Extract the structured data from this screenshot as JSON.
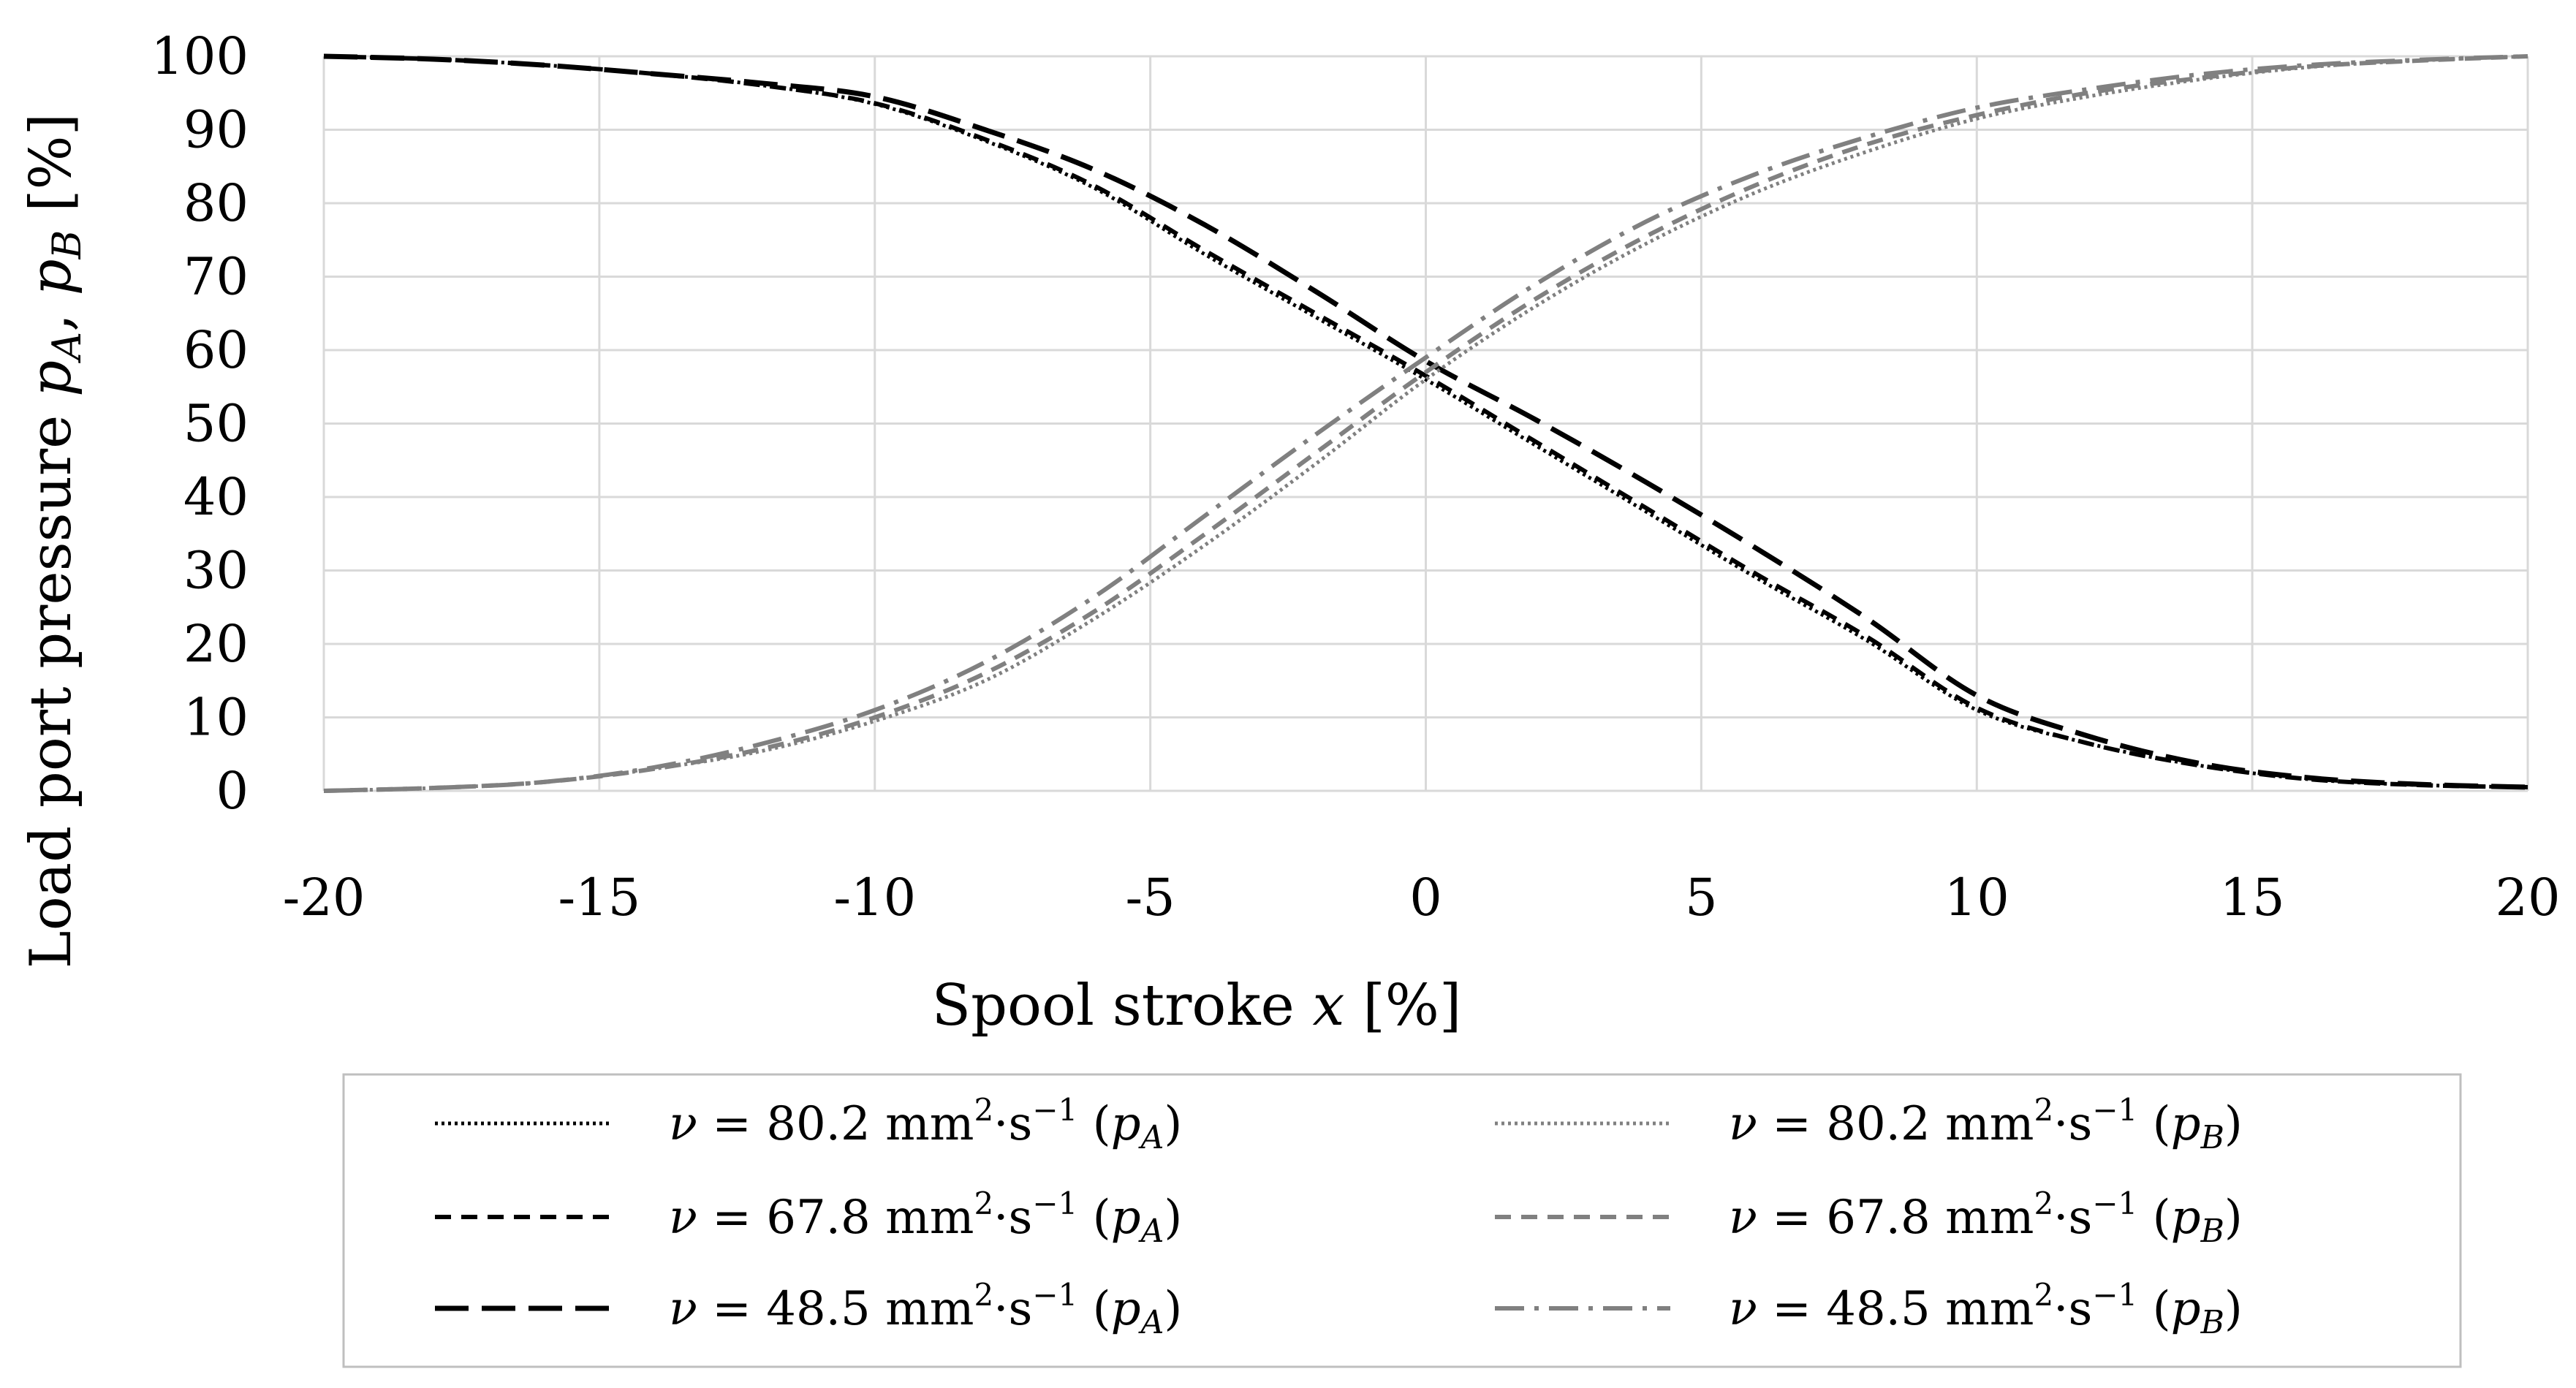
{
  "chart_data": {
    "type": "line",
    "title": "",
    "xlabel": {
      "prefix": "Spool stroke ",
      "var": "x",
      "suffix": " [%]"
    },
    "ylabel": {
      "prefix": "Load port pressure  ",
      "var1": "p",
      "sub1": "A",
      "sep": ", ",
      "var2": "p",
      "sub2": "B",
      "suffix": " [%]"
    },
    "xlim": [
      -20,
      20
    ],
    "ylim": [
      0,
      100
    ],
    "xticks": [
      -20,
      -15,
      -10,
      -5,
      0,
      5,
      10,
      15,
      20
    ],
    "yticks": [
      0,
      10,
      20,
      30,
      40,
      50,
      60,
      70,
      80,
      90,
      100
    ],
    "grid": true,
    "legend_position": "bottom",
    "x": [
      -20,
      -18,
      -16,
      -14,
      -12,
      -10,
      -8,
      -6,
      -4,
      -2,
      0,
      2,
      4,
      6,
      8,
      10,
      12,
      14,
      16,
      18,
      20
    ],
    "series": [
      {
        "name": "ν = 80.2 mm²·s⁻¹ (pA)",
        "visc": "80.2",
        "port": "A",
        "color": "#000000",
        "dash": "dotted",
        "values": [
          100,
          99.6,
          98.8,
          97.6,
          96,
          93.5,
          88.5,
          82,
          73,
          64.5,
          56,
          47,
          38,
          29,
          20.5,
          11,
          6.5,
          3.5,
          1.6,
          0.8,
          0.5
        ]
      },
      {
        "name": "ν = 67.8 mm²·s⁻¹ (pA)",
        "visc": "67.8",
        "port": "A",
        "color": "#000000",
        "dash": "short-dash",
        "values": [
          100,
          99.6,
          98.8,
          97.6,
          96,
          93.6,
          88.7,
          82.3,
          73.5,
          65,
          56.5,
          47.5,
          38.5,
          29.5,
          21,
          11.3,
          6.5,
          3.5,
          1.6,
          0.8,
          0.5
        ]
      },
      {
        "name": "ν = 48.5 mm²·s⁻¹ (pA)",
        "visc": "48.5",
        "port": "A",
        "color": "#000000",
        "dash": "long-dash",
        "values": [
          100,
          99.6,
          98.8,
          97.6,
          96.3,
          94.5,
          90,
          84.5,
          77,
          68,
          58.5,
          50.5,
          42,
          33,
          23.5,
          13,
          7.5,
          3.8,
          1.8,
          0.9,
          0.5
        ]
      },
      {
        "name": "ν = 80.2 mm²·s⁻¹ (pB)",
        "visc": "80.2",
        "port": "B",
        "color": "#808080",
        "dash": "dotted",
        "values": [
          0,
          0.4,
          1.2,
          3,
          5.5,
          9.5,
          15,
          23.5,
          33.5,
          44.5,
          56,
          66,
          74.5,
          81.5,
          87,
          91.5,
          94.5,
          96.8,
          98.5,
          99.4,
          100
        ]
      },
      {
        "name": "ν = 67.8 mm²·s⁻¹ (pB)",
        "visc": "67.8",
        "port": "B",
        "color": "#808080",
        "dash": "short-dash",
        "values": [
          0,
          0.4,
          1.2,
          3,
          5.8,
          10,
          16,
          24.5,
          35,
          46,
          57,
          67,
          75.5,
          82.5,
          88,
          92,
          95,
          97,
          98.6,
          99.4,
          100
        ]
      },
      {
        "name": "ν = 48.5 mm²·s⁻¹ (pB)",
        "visc": "48.5",
        "port": "B",
        "color": "#808080",
        "dash": "dash-dot",
        "values": [
          0,
          0.4,
          1.2,
          3.2,
          6.5,
          11,
          17.5,
          26.5,
          37.5,
          48.5,
          59,
          69,
          77.5,
          84,
          89,
          93,
          95.5,
          97.5,
          98.8,
          99.5,
          100
        ]
      }
    ]
  }
}
